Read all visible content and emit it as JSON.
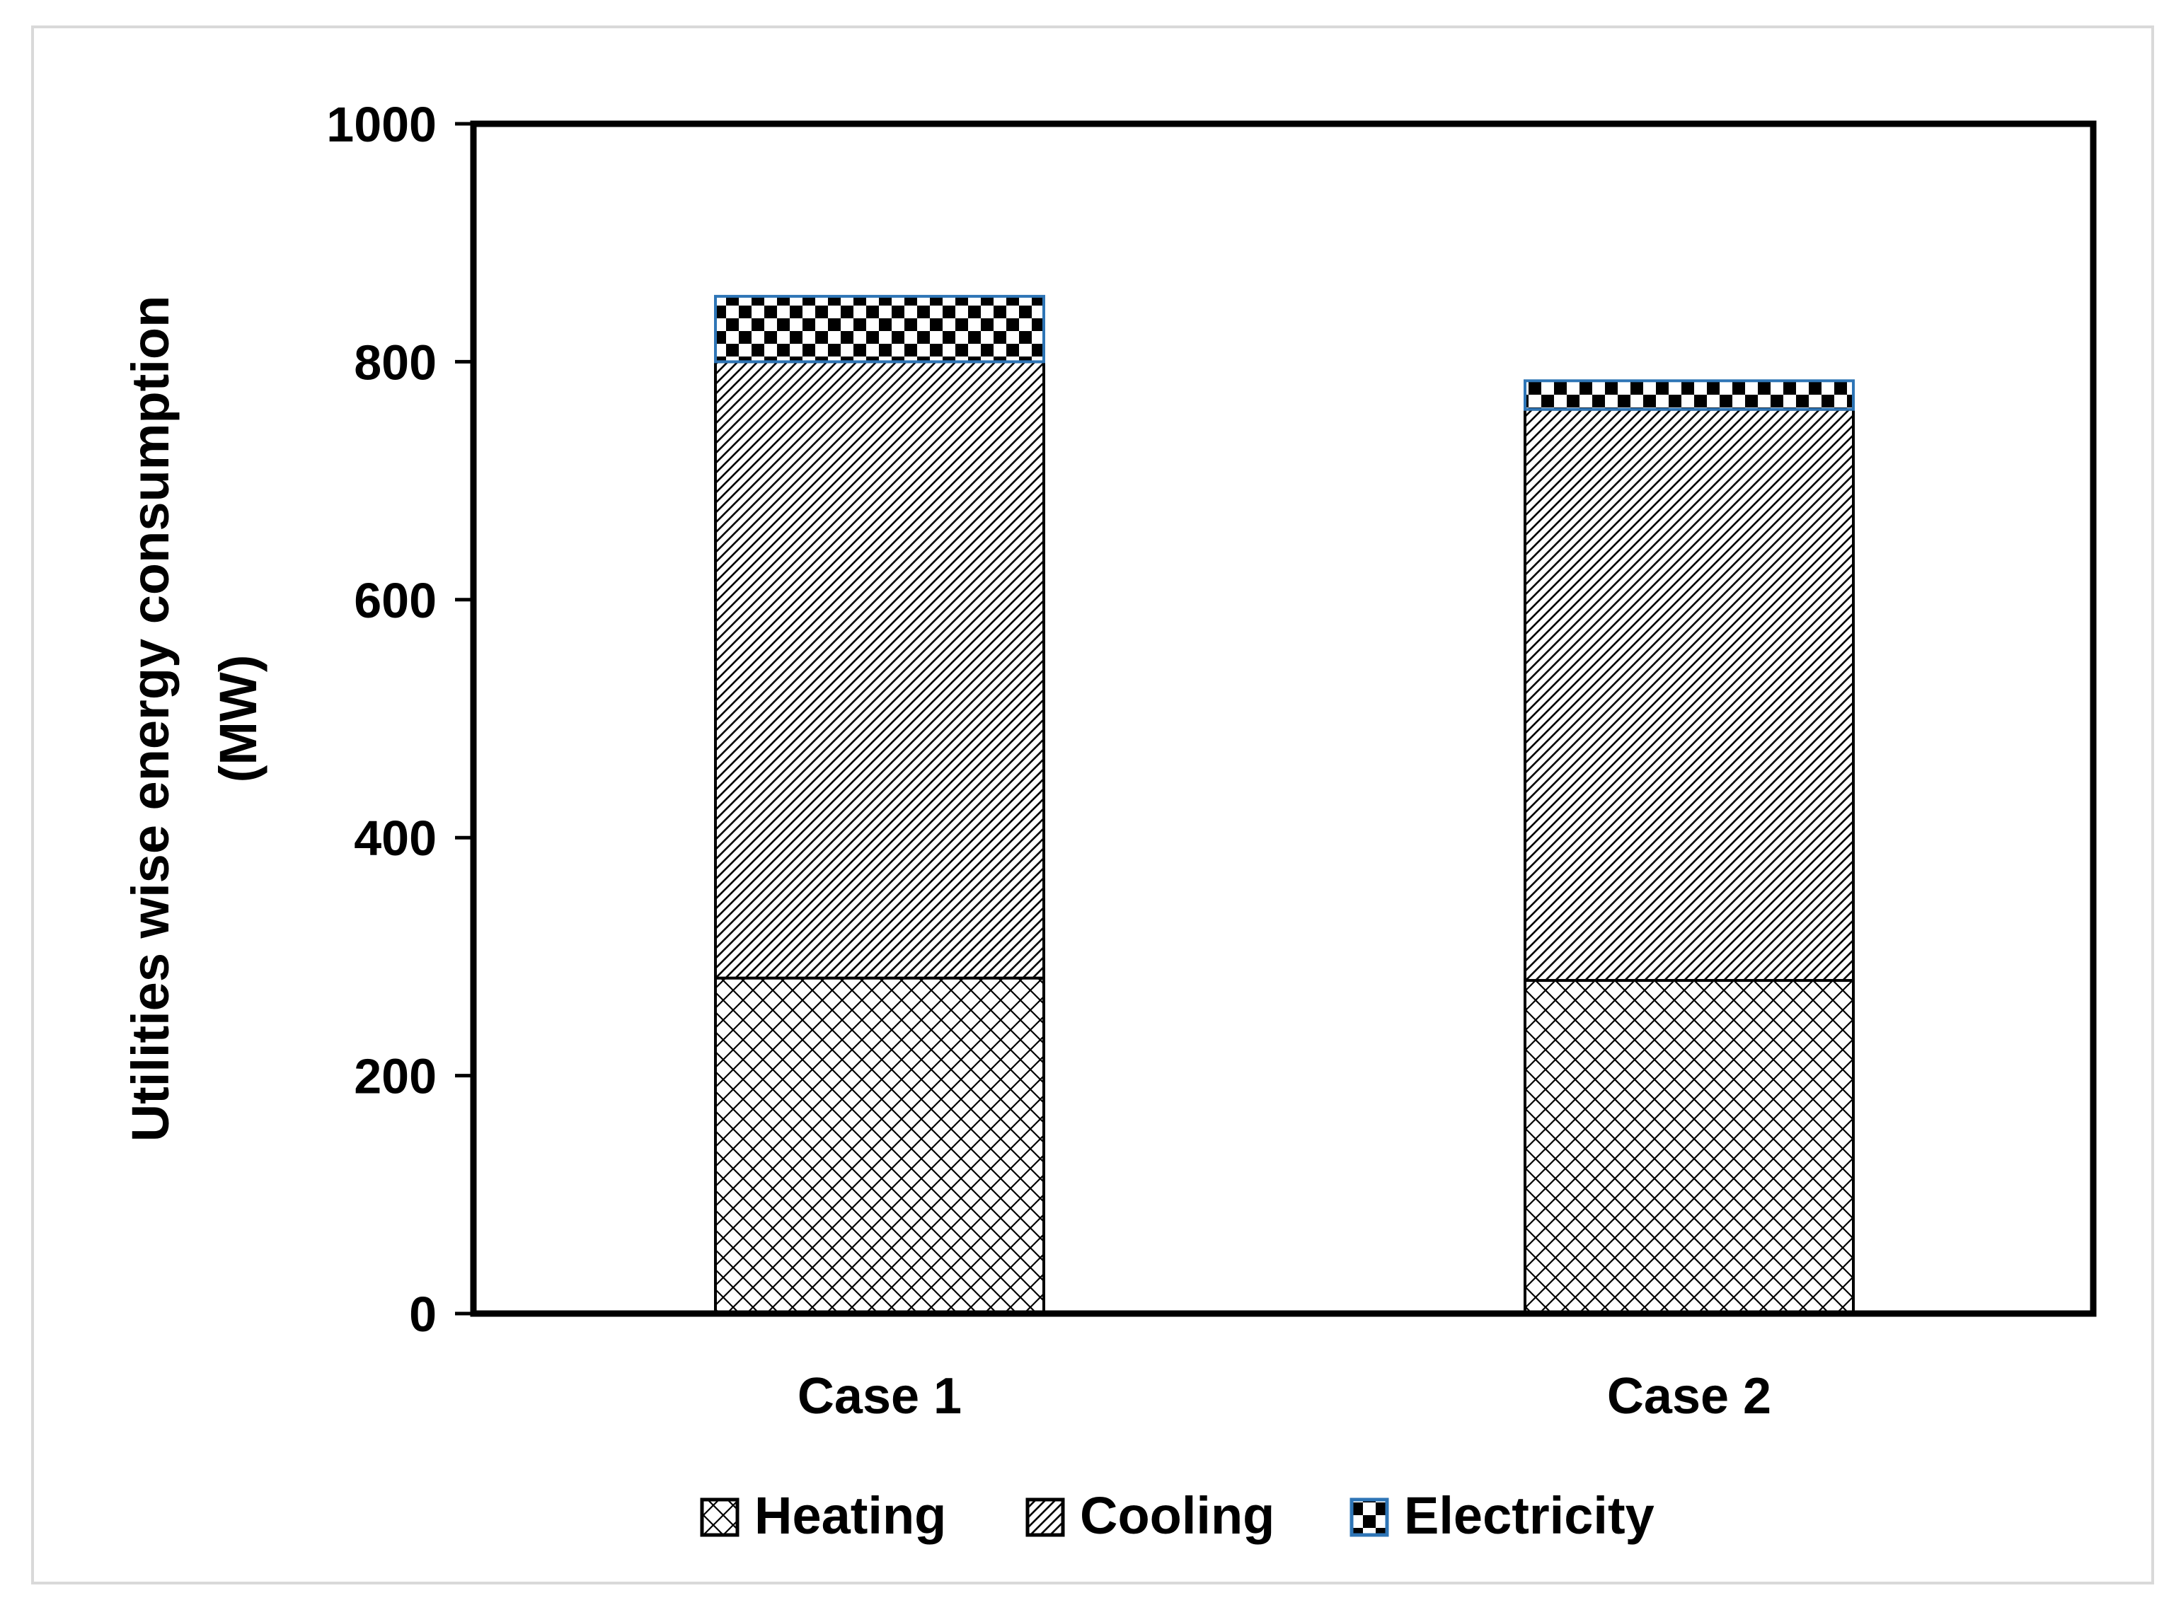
{
  "chart_data": {
    "type": "bar",
    "stacked": true,
    "title": "",
    "xlabel": "",
    "ylabel_lines": [
      "Utilities wise energy consumption",
      "(MW)"
    ],
    "ylim": [
      0,
      1000
    ],
    "yticks": [
      0,
      200,
      400,
      600,
      800,
      1000
    ],
    "grid": false,
    "legend_position": "bottom",
    "categories": [
      "Case 1",
      "Case 2"
    ],
    "series": [
      {
        "name": "Heating",
        "pattern": "crosshatch",
        "values": [
          282,
          280
        ]
      },
      {
        "name": "Cooling",
        "pattern": "diagonal",
        "values": [
          518,
          480
        ]
      },
      {
        "name": "Electricity",
        "pattern": "checker",
        "values": [
          55,
          24
        ]
      }
    ],
    "colors": {
      "stroke": "#000000",
      "electricity_border": "#2e75b6",
      "frame": "#d9d9d9"
    }
  }
}
